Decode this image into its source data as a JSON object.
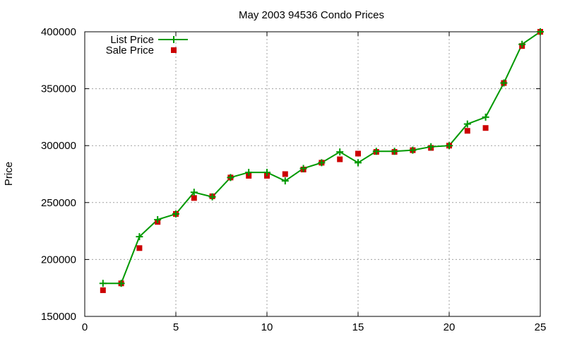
{
  "chart_data": {
    "type": "line",
    "title": "May 2003 94536 Condo Prices",
    "xlabel": "",
    "ylabel": "Price",
    "xlim": [
      0,
      25
    ],
    "ylim": [
      150000,
      400000
    ],
    "xticks": [
      0,
      5,
      10,
      15,
      20,
      25
    ],
    "xtick_labels": [
      "0",
      "5",
      "10",
      "15",
      "20",
      "25"
    ],
    "yticks": [
      150000,
      200000,
      250000,
      300000,
      350000,
      400000
    ],
    "ytick_labels": [
      "150000",
      "200000",
      "250000",
      "300000",
      "350000",
      "400000"
    ],
    "grid": true,
    "legend_position": "top-left",
    "series": [
      {
        "name": "List Price",
        "style": "line+cross",
        "color": "#009900",
        "x": [
          1,
          2,
          3,
          4,
          5,
          6,
          7,
          8,
          9,
          10,
          11,
          12,
          13,
          14,
          15,
          16,
          17,
          18,
          19,
          20,
          21,
          22,
          23,
          24,
          25
        ],
        "y": [
          179000,
          179000,
          220000,
          235000,
          240000,
          259000,
          255000,
          272000,
          276500,
          276500,
          269000,
          280000,
          285000,
          294500,
          285000,
          295000,
          295000,
          296000,
          299000,
          300000,
          319000,
          325000,
          355000,
          389000,
          400000
        ]
      },
      {
        "name": "Sale Price",
        "style": "square",
        "color": "#cc0000",
        "x": [
          1,
          2,
          3,
          4,
          5,
          6,
          7,
          8,
          9,
          10,
          11,
          12,
          13,
          14,
          15,
          16,
          17,
          18,
          19,
          20,
          21,
          22,
          23,
          24,
          25
        ],
        "y": [
          173000,
          179000,
          210000,
          233000,
          240000,
          254000,
          255500,
          272000,
          273500,
          273500,
          275000,
          279000,
          285000,
          288000,
          293000,
          294500,
          294500,
          296000,
          298000,
          300000,
          313000,
          315500,
          355000,
          387500,
          400000
        ]
      }
    ]
  }
}
